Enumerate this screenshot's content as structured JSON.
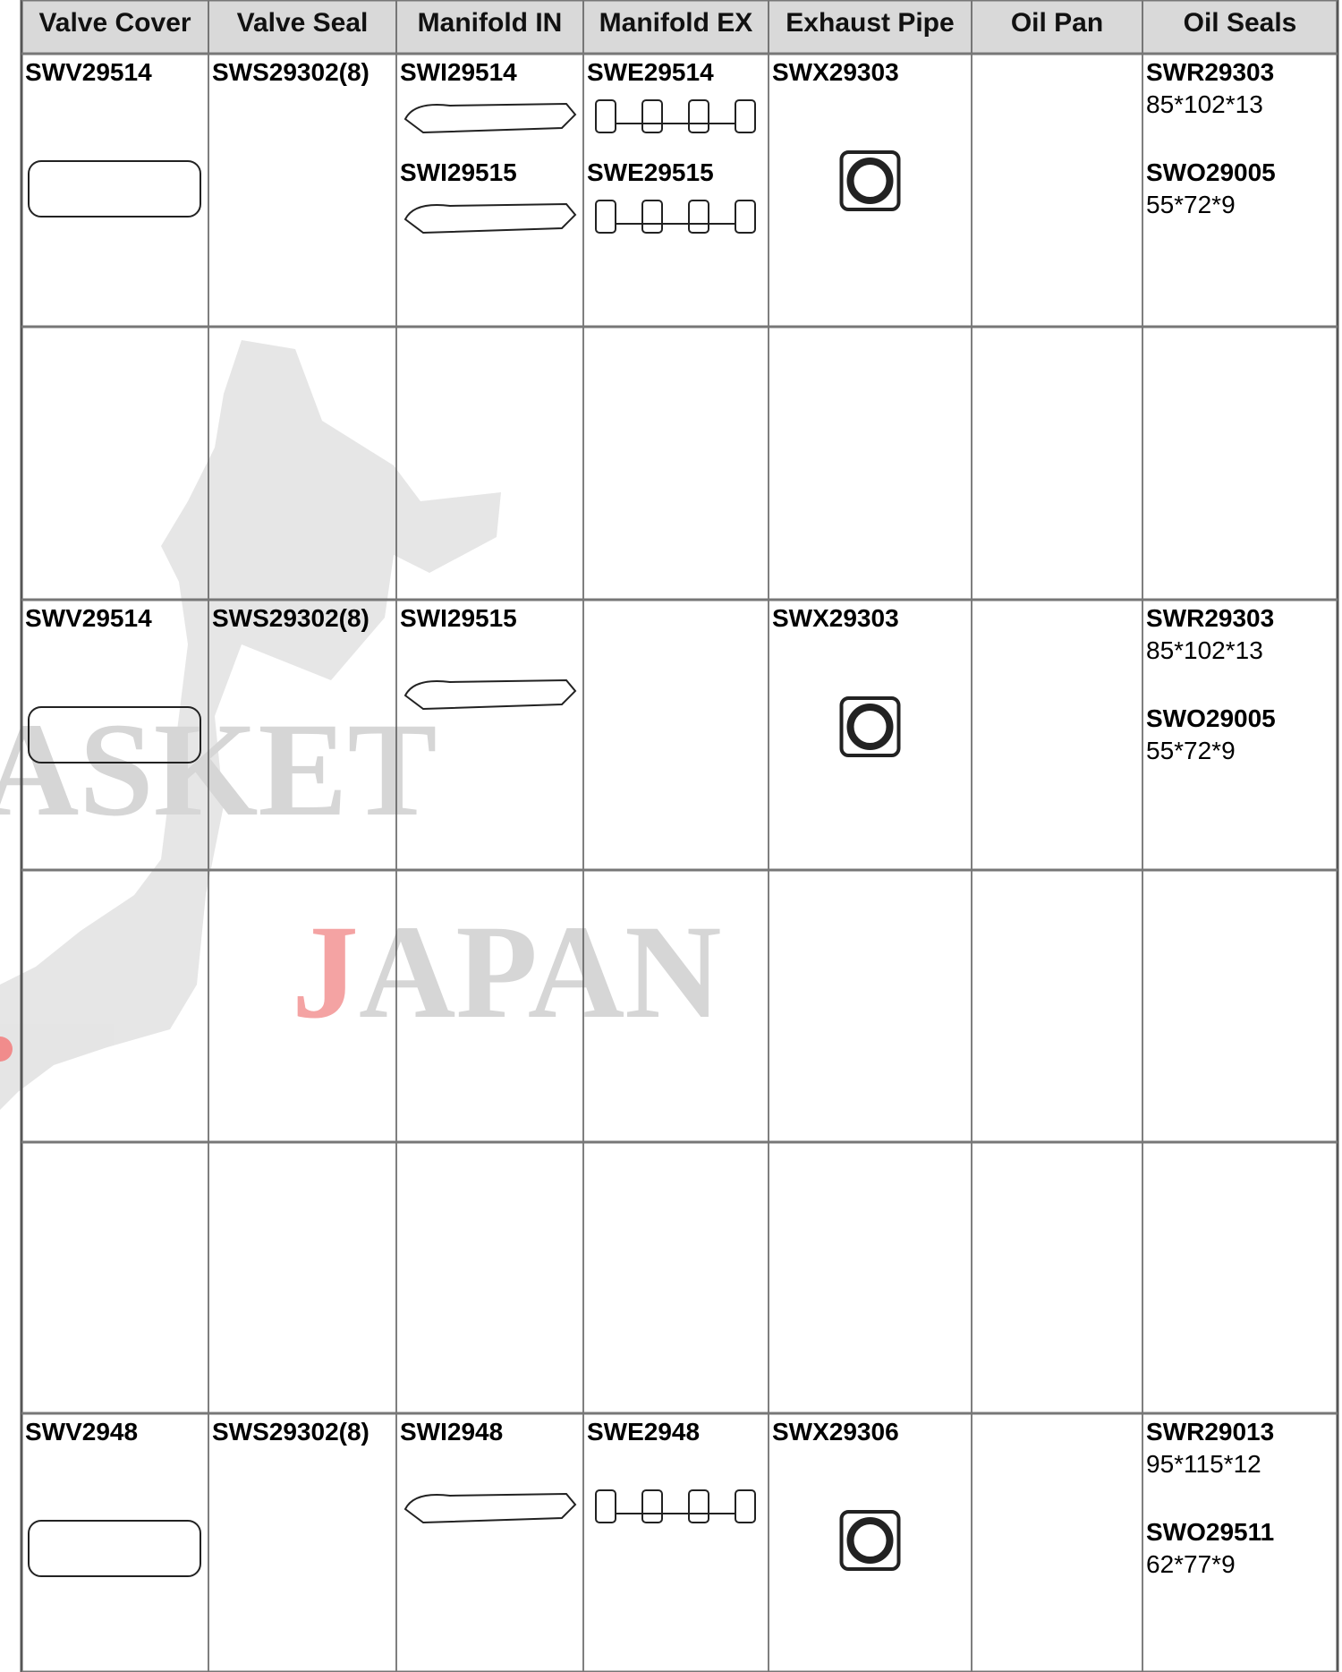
{
  "table": {
    "header": [
      "Valve Cover",
      "Valve Seal",
      "Manifold IN",
      "Manifold EX",
      "Exhaust Pipe",
      "Oil Pan",
      "Oil Seals"
    ],
    "rows": [
      [
        [
          {
            "code": "SWV29514"
          }
        ],
        [
          {
            "code": "SWS29302(8)"
          }
        ],
        [
          {
            "code": "SWI29514"
          },
          {
            "code": "SWI29515"
          }
        ],
        [
          {
            "code": "SWE29514"
          },
          {
            "code": "SWE29515"
          }
        ],
        [
          {
            "code": "SWX29303"
          }
        ],
        [],
        [
          {
            "code": "SWR29303",
            "size": "85*102*13"
          },
          {
            "code": "SWO29005",
            "size": "55*72*9"
          }
        ]
      ],
      [
        [],
        [],
        [],
        [],
        [],
        [],
        []
      ],
      [
        [
          {
            "code": "SWV29514"
          }
        ],
        [
          {
            "code": "SWS29302(8)"
          }
        ],
        [
          {
            "code": "SWI29515"
          }
        ],
        [],
        [
          {
            "code": "SWX29303"
          }
        ],
        [],
        [
          {
            "code": "SWR29303",
            "size": "85*102*13"
          },
          {
            "code": "SWO29005",
            "size": "55*72*9"
          }
        ]
      ],
      [
        [],
        [],
        [],
        [],
        [],
        [],
        []
      ],
      [
        [],
        [],
        [],
        [],
        [],
        [],
        []
      ],
      [
        [
          {
            "code": "SWV2948"
          }
        ],
        [
          {
            "code": "SWS29302(8)"
          }
        ],
        [
          {
            "code": "SWI2948"
          }
        ],
        [
          {
            "code": "SWE2948"
          }
        ],
        [
          {
            "code": "SWX29306"
          }
        ],
        [],
        [
          {
            "code": "SWR29013",
            "size": "95*115*12"
          },
          {
            "code": "SWO29511",
            "size": "62*77*9"
          }
        ]
      ]
    ]
  },
  "watermark": {
    "word1": "ASKET",
    "word2": "JAPAN"
  }
}
